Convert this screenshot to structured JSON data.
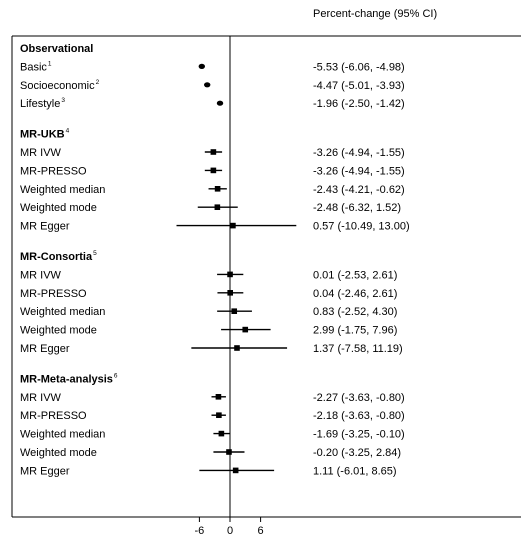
{
  "column_header": "Percent-change (95% CI)",
  "chart_data": {
    "type": "forest",
    "xlim": [
      -13,
      16
    ],
    "x_ticks": [
      {
        "value": -6,
        "label": "-6"
      },
      {
        "value": 0,
        "label": "0"
      },
      {
        "value": 6,
        "label": "6"
      }
    ],
    "reference_line": 0,
    "groups": [
      {
        "title": "Observational",
        "title_sup": "",
        "rows": [
          {
            "label": "Basic",
            "sup": "1",
            "estimate": -5.53,
            "lower": -6.06,
            "upper": -4.98,
            "ci_text": "-5.53 (-6.06, -4.98)"
          },
          {
            "label": "Socioeconomic",
            "sup": "2",
            "estimate": -4.47,
            "lower": -5.01,
            "upper": -3.93,
            "ci_text": "-4.47 (-5.01, -3.93)"
          },
          {
            "label": "Lifestyle",
            "sup": "3",
            "estimate": -1.96,
            "lower": -2.5,
            "upper": -1.42,
            "ci_text": "-1.96 (-2.50, -1.42)"
          }
        ]
      },
      {
        "title": "MR-UKB",
        "title_sup": "4",
        "rows": [
          {
            "label": "MR IVW",
            "sup": "",
            "estimate": -3.26,
            "lower": -4.94,
            "upper": -1.55,
            "ci_text": "-3.26 (-4.94, -1.55)"
          },
          {
            "label": "MR-PRESSO",
            "sup": "",
            "estimate": -3.26,
            "lower": -4.94,
            "upper": -1.55,
            "ci_text": "-3.26 (-4.94, -1.55)"
          },
          {
            "label": "Weighted median",
            "sup": "",
            "estimate": -2.43,
            "lower": -4.21,
            "upper": -0.62,
            "ci_text": "-2.43 (-4.21, -0.62)"
          },
          {
            "label": "Weighted mode",
            "sup": "",
            "estimate": -2.48,
            "lower": -6.32,
            "upper": 1.52,
            "ci_text": "-2.48 (-6.32, 1.52)"
          },
          {
            "label": "MR Egger",
            "sup": "",
            "estimate": 0.57,
            "lower": -10.49,
            "upper": 13.0,
            "ci_text": "0.57 (-10.49, 13.00)"
          }
        ]
      },
      {
        "title": "MR-Consortia",
        "title_sup": "5",
        "rows": [
          {
            "label": "MR IVW",
            "sup": "",
            "estimate": 0.01,
            "lower": -2.53,
            "upper": 2.61,
            "ci_text": "0.01 (-2.53, 2.61)"
          },
          {
            "label": "MR-PRESSO",
            "sup": "",
            "estimate": 0.04,
            "lower": -2.46,
            "upper": 2.61,
            "ci_text": "0.04 (-2.46, 2.61)"
          },
          {
            "label": "Weighted median",
            "sup": "",
            "estimate": 0.83,
            "lower": -2.52,
            "upper": 4.3,
            "ci_text": "0.83 (-2.52, 4.30)"
          },
          {
            "label": "Weighted mode",
            "sup": "",
            "estimate": 2.99,
            "lower": -1.75,
            "upper": 7.96,
            "ci_text": "2.99 (-1.75, 7.96)"
          },
          {
            "label": "MR Egger",
            "sup": "",
            "estimate": 1.37,
            "lower": -7.58,
            "upper": 11.19,
            "ci_text": "1.37 (-7.58, 11.19)"
          }
        ]
      },
      {
        "title": "MR-Meta-analysis",
        "title_sup": "6",
        "rows": [
          {
            "label": "MR IVW",
            "sup": "",
            "estimate": -2.27,
            "lower": -3.63,
            "upper": -0.8,
            "ci_text": "-2.27 (-3.63, -0.80)"
          },
          {
            "label": "MR-PRESSO",
            "sup": "",
            "estimate": -2.18,
            "lower": -3.63,
            "upper": -0.8,
            "ci_text": "-2.18 (-3.63, -0.80)"
          },
          {
            "label": "Weighted median",
            "sup": "",
            "estimate": -1.69,
            "lower": -3.25,
            "upper": -0.1,
            "ci_text": "-1.69 (-3.25, -0.10)"
          },
          {
            "label": "Weighted mode",
            "sup": "",
            "estimate": -0.2,
            "lower": -3.25,
            "upper": 2.84,
            "ci_text": "-0.20 (-3.25, 2.84)"
          },
          {
            "label": "MR Egger",
            "sup": "",
            "estimate": 1.11,
            "lower": -6.01,
            "upper": 8.65,
            "ci_text": "1.11 (-6.01, 8.65)"
          }
        ]
      }
    ]
  }
}
